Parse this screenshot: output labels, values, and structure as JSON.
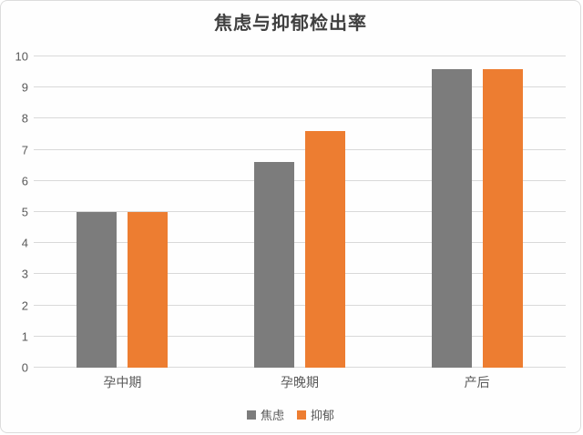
{
  "chart_data": {
    "type": "bar",
    "title": "焦虑与抑郁检出率",
    "categories": [
      "孕中期",
      "孕晚期",
      "产后"
    ],
    "series": [
      {
        "name": "焦虑",
        "color": "#7C7C7C",
        "values": [
          5,
          6.6,
          9.6
        ]
      },
      {
        "name": "抑郁",
        "color": "#ED7D31",
        "values": [
          5,
          7.6,
          9.6
        ]
      }
    ],
    "ylim": [
      0,
      10
    ],
    "yticks": [
      0,
      1,
      2,
      3,
      4,
      5,
      6,
      7,
      8,
      9,
      10
    ],
    "xlabel": "",
    "ylabel": "",
    "grid": true,
    "legend_position": "bottom"
  },
  "colors": {
    "title_text": "#404040",
    "axis_label_text": "#595959",
    "gridline": "#D9D9D9",
    "frame_border": "#DCDCDC",
    "background": "#FEFEFE"
  }
}
